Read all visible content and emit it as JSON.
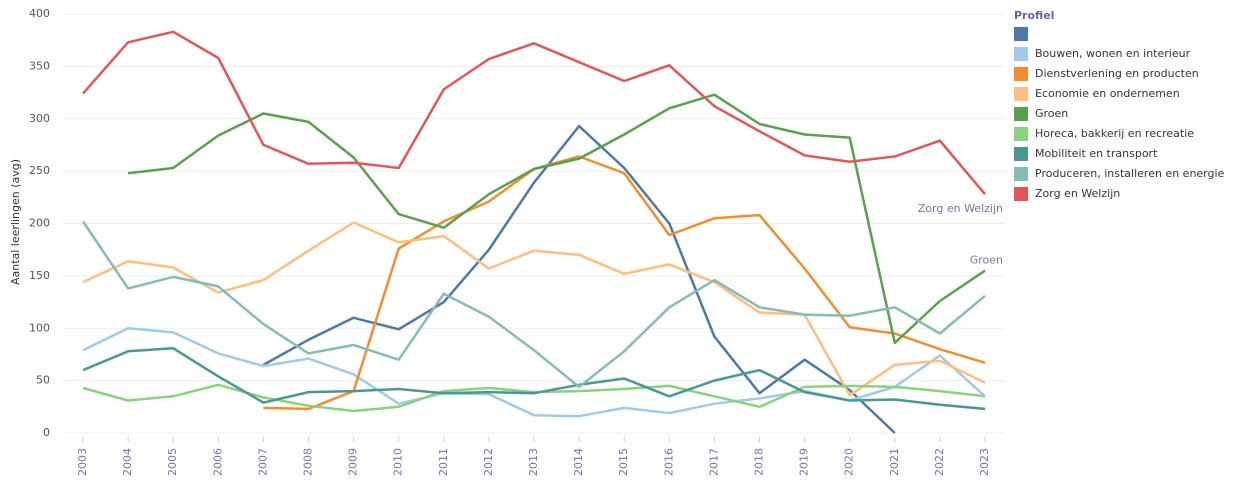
{
  "chart_data": {
    "type": "line",
    "y_label": "Aantal leerlingen (avg)",
    "legend_title": "Profiel",
    "legend_position": "right",
    "grid": true,
    "categories": [
      "2003",
      "2004",
      "2005",
      "2006",
      "2007",
      "2008",
      "2009",
      "2010",
      "2011",
      "2012",
      "2013",
      "2014",
      "2015",
      "2016",
      "2017",
      "2018",
      "2019",
      "2020",
      "2021",
      "2022",
      "2023"
    ],
    "ylim": [
      0,
      400
    ],
    "yticks": [
      0,
      50,
      100,
      150,
      200,
      250,
      300,
      350,
      400
    ],
    "line_end_labels": [
      "Zorg en Welzijn",
      "Groen"
    ],
    "series": [
      {
        "name": null,
        "color": "#4e79a7",
        "values": [
          null,
          null,
          null,
          null,
          65,
          89,
          110,
          99,
          125,
          175,
          239,
          293,
          253,
          200,
          92,
          38,
          70,
          41,
          0,
          null,
          null
        ]
      },
      {
        "name": "Bouwen, wonen en interieur",
        "color": "#a0cbe8",
        "values": [
          79,
          100,
          96,
          76,
          64,
          71,
          56,
          28,
          38,
          37,
          17,
          16,
          24,
          19,
          28,
          33,
          40,
          31,
          44,
          74,
          35
        ]
      },
      {
        "name": "Dienstverlening en producten",
        "color": "#f28e2b",
        "values": [
          null,
          null,
          null,
          null,
          24,
          23,
          40,
          176,
          202,
          221,
          252,
          264,
          248,
          189,
          205,
          208,
          157,
          101,
          95,
          80,
          67
        ]
      },
      {
        "name": "Economie en ondernemen",
        "color": "#ffbe7d",
        "values": [
          144,
          164,
          158,
          134,
          146,
          174,
          201,
          182,
          188,
          157,
          174,
          170,
          152,
          161,
          144,
          115,
          113,
          36,
          65,
          69,
          48
        ]
      },
      {
        "name": "Groen",
        "color": "#59a14f",
        "values": [
          null,
          248,
          253,
          284,
          305,
          297,
          263,
          209,
          196,
          228,
          252,
          262,
          285,
          310,
          323,
          295,
          285,
          282,
          86,
          126,
          155
        ]
      },
      {
        "name": "Horeca, bakkerij en recreatie",
        "color": "#8cd17d",
        "values": [
          43,
          31,
          35,
          46,
          34,
          26,
          21,
          25,
          40,
          43,
          39,
          40,
          42,
          45,
          35,
          25,
          44,
          45,
          44,
          40,
          35
        ]
      },
      {
        "name": "Mobiliteit en transport",
        "color": "#499894",
        "values": [
          60,
          78,
          81,
          54,
          29,
          39,
          40,
          42,
          38,
          39,
          38,
          46,
          52,
          35,
          50,
          60,
          39,
          31,
          32,
          27,
          23
        ]
      },
      {
        "name": "Produceren, installeren en energie",
        "color": "#86bcb6",
        "values": [
          202,
          138,
          149,
          140,
          104,
          76,
          84,
          70,
          133,
          111,
          79,
          44,
          78,
          120,
          146,
          120,
          113,
          112,
          120,
          95,
          131
        ]
      },
      {
        "name": "Zorg en Welzijn",
        "color": "#e15759",
        "values": [
          324,
          373,
          383,
          358,
          275,
          257,
          258,
          253,
          328,
          357,
          372,
          354,
          336,
          351,
          312,
          288,
          265,
          259,
          264,
          279,
          228
        ]
      }
    ]
  }
}
